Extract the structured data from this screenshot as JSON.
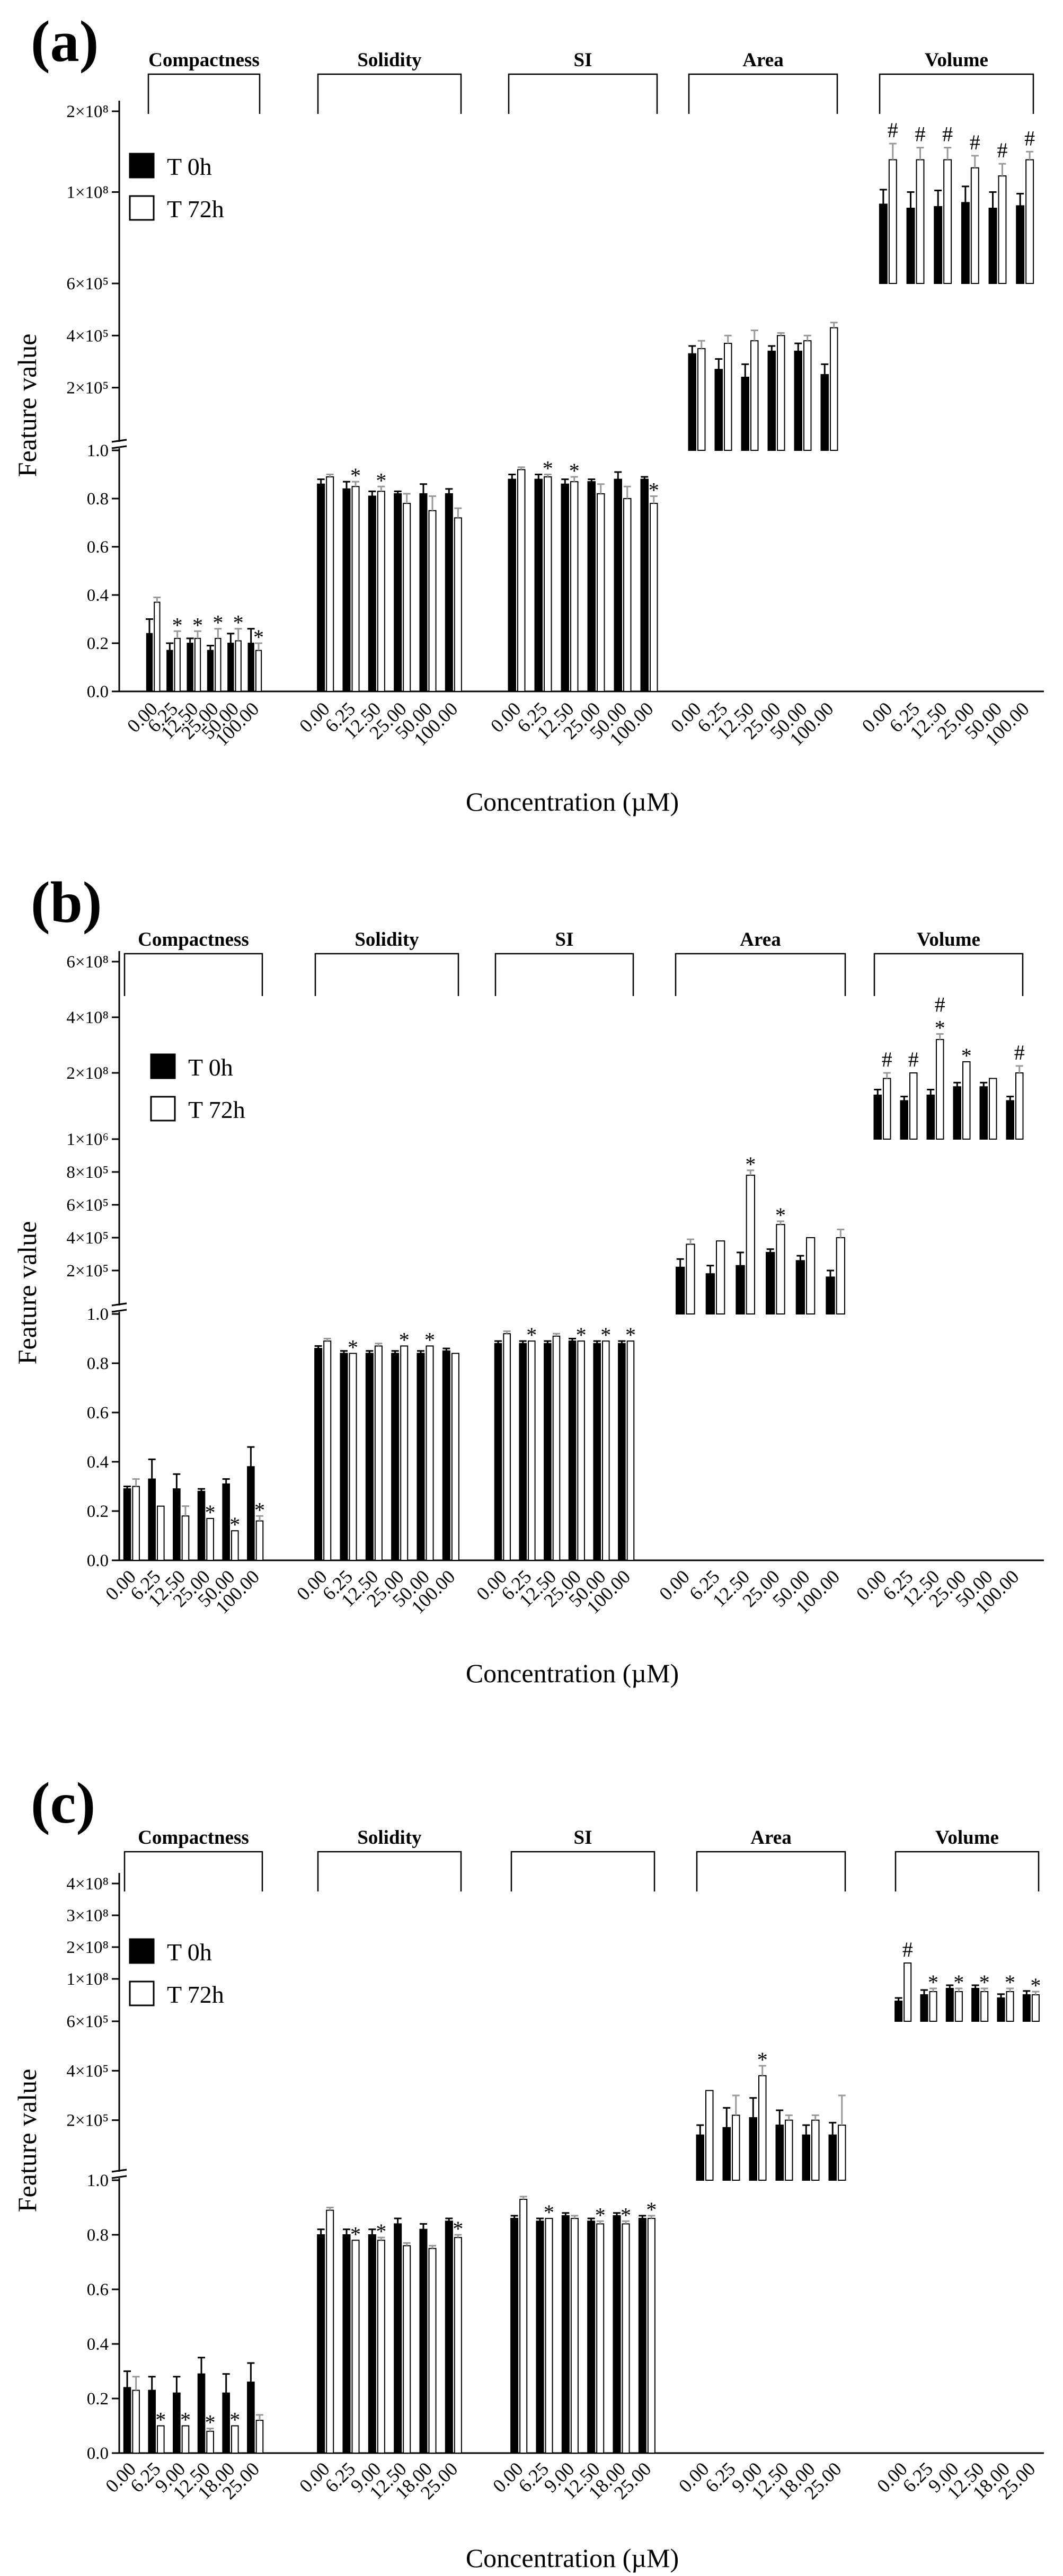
{
  "figure": {
    "colors": {
      "t0": "#000000",
      "t72": "#ffffff",
      "t72_error_bar": "#999999",
      "axis": "#000000"
    },
    "xticks_common": [
      "0.00",
      "6.25",
      "12.50",
      "25.00",
      "50.00",
      "100.00"
    ],
    "xticks_c": [
      "0.00",
      "6.25",
      "9.00",
      "12.50",
      "18.00",
      "25.00"
    ]
  },
  "chart_data": [
    {
      "type": "bar",
      "panel": "(a)",
      "title": "",
      "xlabel": "Concentration (µM)",
      "ylabel": "Feature value",
      "legend": [
        "T 0h",
        "T 72h"
      ],
      "legend_position": "upper-left",
      "groups": [
        "Compactness",
        "Solidity",
        "SI",
        "Area",
        "Volume"
      ],
      "categories": [
        "0.00",
        "6.25",
        "12.50",
        "25.00",
        "50.00",
        "100.00"
      ],
      "axis_segments": [
        {
          "name": "ratio",
          "range": [
            0,
            1.0
          ],
          "ticks": [
            "0.0",
            "0.2",
            "0.4",
            "0.6",
            "0.8",
            "1.0"
          ]
        },
        {
          "name": "area",
          "range": [
            0,
            600000.0
          ],
          "ticks": [
            "2×10⁵",
            "4×10⁵",
            "6×10⁵"
          ]
        },
        {
          "name": "volume",
          "range": [
            0,
            200000000.0
          ],
          "ticks": [
            "1×10⁸",
            "2×10⁸"
          ]
        }
      ],
      "series": [
        {
          "name": "T 0h",
          "groups": {
            "Compactness": [
              0.24,
              0.17,
              0.2,
              0.17,
              0.2,
              0.2
            ],
            "Solidity": [
              0.86,
              0.84,
              0.81,
              0.82,
              0.82,
              0.82
            ],
            "SI": [
              0.88,
              0.88,
              0.86,
              0.87,
              0.88,
              0.88
            ],
            "Area": [
              330000.0,
              270000.0,
              240000.0,
              340000.0,
              340000.0,
              250000.0
            ],
            "Volume": [
              85000000.0,
              80000000.0,
              82000000.0,
              87000000.0,
              80000000.0,
              83000000.0
            ]
          }
        },
        {
          "name": "T 72h",
          "groups": {
            "Compactness": [
              0.37,
              0.22,
              0.22,
              0.22,
              0.21,
              0.17
            ],
            "Solidity": [
              0.89,
              0.85,
              0.83,
              0.78,
              0.75,
              0.72
            ],
            "SI": [
              0.92,
              0.89,
              0.87,
              0.82,
              0.8,
              0.78
            ],
            "Area": [
              350000.0,
              370000.0,
              380000.0,
              400000.0,
              380000.0,
              430000.0
            ],
            "Volume": [
              140000000.0,
              140000000.0,
              140000000.0,
              130000000.0,
              120000000.0,
              140000000.0
            ]
          }
        }
      ],
      "errors": {
        "T 0h": {
          "Compactness": [
            0.06,
            0.03,
            0.02,
            0.02,
            0.04,
            0.06
          ],
          "Solidity": [
            0.02,
            0.03,
            0.02,
            0.01,
            0.04,
            0.02
          ],
          "SI": [
            0.02,
            0.02,
            0.02,
            0.01,
            0.03,
            0.01
          ],
          "Area": [
            30000.0,
            40000.0,
            50000.0,
            20000.0,
            30000.0,
            40000.0
          ],
          "Volume": [
            18000000.0,
            20000000.0,
            20000000.0,
            20000000.0,
            20000000.0,
            15000000.0
          ]
        },
        "T 72h": {
          "Compactness": [
            0.02,
            0.03,
            0.03,
            0.04,
            0.05,
            0.03
          ],
          "Solidity": [
            0.01,
            0.02,
            0.02,
            0.04,
            0.06,
            0.04
          ],
          "SI": [
            0.01,
            0.01,
            0.02,
            0.04,
            0.05,
            0.03
          ],
          "Area": [
            30000.0,
            30000.0,
            40000.0,
            10000.0,
            20000.0,
            20000.0
          ],
          "Volume": [
            20000000.0,
            15000000.0,
            15000000.0,
            15000000.0,
            15000000.0,
            10000000.0
          ]
        }
      },
      "annotations": {
        "Compactness": [
          "",
          "*",
          "*",
          "*",
          "*",
          "*"
        ],
        "Solidity": [
          "",
          "*",
          "*",
          "",
          "",
          ""
        ],
        "SI": [
          "",
          "*",
          "*",
          "",
          "",
          "*"
        ],
        "Area": [
          "",
          "",
          "",
          "",
          "",
          ""
        ],
        "Volume": [
          "#",
          "#",
          "#",
          "#",
          "#",
          "#"
        ]
      }
    },
    {
      "type": "bar",
      "panel": "(b)",
      "title": "",
      "xlabel": "Concentration (µM)",
      "ylabel": "Feature value",
      "legend": [
        "T 0h",
        "T 72h"
      ],
      "legend_position": "upper-left",
      "groups": [
        "Compactness",
        "Solidity",
        "SI",
        "Area",
        "Volume"
      ],
      "categories": [
        "0.00",
        "6.25",
        "12.50",
        "25.00",
        "50.00",
        "100.00"
      ],
      "axis_segments": [
        {
          "name": "ratio",
          "range": [
            0,
            1.0
          ],
          "ticks": [
            "0.0",
            "0.2",
            "0.4",
            "0.6",
            "0.8",
            "1.0"
          ]
        },
        {
          "name": "area",
          "range": [
            0,
            1000000.0
          ],
          "ticks": [
            "2×10⁵",
            "4×10⁵",
            "6×10⁵",
            "8×10⁵",
            "1×10⁶"
          ]
        },
        {
          "name": "volume",
          "range": [
            0,
            600000000.0
          ],
          "ticks": [
            "2×10⁸",
            "4×10⁸",
            "6×10⁸"
          ]
        }
      ],
      "series": [
        {
          "name": "T 0h",
          "groups": {
            "Compactness": [
              0.29,
              0.33,
              0.29,
              0.28,
              0.31,
              0.38
            ],
            "Solidity": [
              0.86,
              0.84,
              0.84,
              0.84,
              0.84,
              0.85
            ],
            "SI": [
              0.88,
              0.88,
              0.88,
              0.89,
              0.88,
              0.88
            ],
            "Area": [
              220000.0,
              180000.0,
              230000.0,
              310000.0,
              260000.0,
              160000.0
            ],
            "Volume": [
              120000000.0,
              100000000.0,
              120000000.0,
              150000000.0,
              150000000.0,
              100000000.0
            ]
          }
        },
        {
          "name": "T 72h",
          "groups": {
            "Compactness": [
              0.3,
              0.22,
              0.18,
              0.17,
              0.12,
              0.16
            ],
            "Solidity": [
              0.89,
              0.84,
              0.87,
              0.87,
              0.87,
              0.84
            ],
            "SI": [
              0.92,
              0.89,
              0.91,
              0.89,
              0.89,
              0.89
            ],
            "Area": [
              360000.0,
              380000.0,
              780000.0,
              480000.0,
              400000.0,
              400000.0
            ],
            "Volume": [
              180000000.0,
              200000000.0,
              320000000.0,
              240000000.0,
              180000000.0,
              200000000.0
            ]
          }
        }
      ],
      "errors": {
        "T 0h": {
          "Compactness": [
            0.01,
            0.08,
            0.06,
            0.01,
            0.02,
            0.08
          ],
          "Solidity": [
            0.01,
            0.01,
            0.01,
            0.01,
            0.01,
            0.01
          ],
          "SI": [
            0.01,
            0.01,
            0.01,
            0.01,
            0.01,
            0.01
          ],
          "Area": [
            50000.0,
            50000.0,
            80000.0,
            20000.0,
            30000.0,
            40000.0
          ],
          "Volume": [
            20000000.0,
            15000000.0,
            20000000.0,
            15000000.0,
            15000000.0,
            15000000.0
          ]
        },
        "T 72h": {
          "Compactness": [
            0.03,
            0.0,
            0.04,
            0.0,
            0.0,
            0.02
          ],
          "Solidity": [
            0.01,
            0.0,
            0.01,
            0.0,
            0.0,
            0.0
          ],
          "SI": [
            0.01,
            0.0,
            0.01,
            0.0,
            0.0,
            0.0
          ],
          "Area": [
            30000.0,
            0,
            30000.0,
            20000.0,
            0,
            50000.0
          ],
          "Volume": [
            20000000.0,
            0,
            20000000.0,
            0,
            0,
            25000000.0
          ]
        }
      },
      "annotations": {
        "Compactness": [
          "",
          "",
          "",
          "*",
          "*",
          "*"
        ],
        "Solidity": [
          "",
          "*",
          "",
          "*",
          "*",
          ""
        ],
        "SI": [
          "",
          "*",
          "",
          "*",
          "*",
          "*"
        ],
        "Area": [
          "",
          "",
          "*",
          "*",
          "",
          ""
        ],
        "Volume": [
          "#",
          "#",
          "#*",
          "*",
          "",
          "#"
        ]
      }
    },
    {
      "type": "bar",
      "panel": "(c)",
      "title": "",
      "xlabel": "Concentration (µM)",
      "ylabel": "Feature value",
      "legend": [
        "T 0h",
        "T 72h"
      ],
      "legend_position": "upper-left",
      "groups": [
        "Compactness",
        "Solidity",
        "SI",
        "Area",
        "Volume"
      ],
      "categories": [
        "0.00",
        "6.25",
        "9.00",
        "12.50",
        "18.00",
        "25.00"
      ],
      "axis_segments": [
        {
          "name": "ratio",
          "range": [
            0,
            1.0
          ],
          "ticks": [
            "0.0",
            "0.2",
            "0.4",
            "0.6",
            "0.8",
            "1.0"
          ]
        },
        {
          "name": "area",
          "range": [
            0,
            600000.0
          ],
          "ticks": [
            "2×10⁵",
            "4×10⁵",
            "6×10⁵"
          ]
        },
        {
          "name": "volume",
          "range": [
            0,
            400000000.0
          ],
          "ticks": [
            "1×10⁸",
            "2×10⁸",
            "3×10⁸",
            "4×10⁸"
          ]
        }
      ],
      "series": [
        {
          "name": "T 0h",
          "groups": {
            "Compactness": [
              0.24,
              0.23,
              0.22,
              0.29,
              0.22,
              0.26
            ],
            "Solidity": [
              0.8,
              0.8,
              0.8,
              0.84,
              0.82,
              0.85
            ],
            "SI": [
              0.86,
              0.85,
              0.87,
              0.85,
              0.87,
              0.86
            ],
            "Area": [
              140000.0,
              170000.0,
              210000.0,
              180000.0,
              140000.0,
              140000.0
            ],
            "Volume": [
              30000000.0,
              50000000.0,
              70000000.0,
              70000000.0,
              40000000.0,
              50000000.0
            ]
          }
        },
        {
          "name": "T 72h",
          "groups": {
            "Compactness": [
              0.23,
              0.1,
              0.1,
              0.08,
              0.1,
              0.12
            ],
            "Solidity": [
              0.89,
              0.78,
              0.78,
              0.76,
              0.75,
              0.79
            ],
            "SI": [
              0.93,
              0.86,
              0.86,
              0.84,
              0.84,
              0.86
            ],
            "Area": [
              320000.0,
              220000.0,
              380000.0,
              200000.0,
              200000.0,
              180000.0
            ],
            "Volume": [
              150000000.0,
              60000000.0,
              60000000.0,
              60000000.0,
              60000000.0,
              50000000.0
            ]
          }
        }
      ],
      "errors": {
        "T 0h": {
          "Compactness": [
            0.06,
            0.05,
            0.06,
            0.06,
            0.07,
            0.07
          ],
          "Solidity": [
            0.02,
            0.02,
            0.02,
            0.02,
            0.02,
            0.01
          ],
          "SI": [
            0.01,
            0.01,
            0.01,
            0.01,
            0.01,
            0.01
          ],
          "Area": [
            40000.0,
            80000.0,
            80000.0,
            60000.0,
            40000.0,
            50000.0
          ],
          "Volume": [
            10000000.0,
            15000000.0,
            10000000.0,
            10000000.0,
            12000000.0,
            12000000.0
          ]
        },
        "T 72h": {
          "Compactness": [
            0.05,
            0.0,
            0.0,
            0.01,
            0.0,
            0.02
          ],
          "Solidity": [
            0.01,
            0.0,
            0.01,
            0.01,
            0.01,
            0.01
          ],
          "SI": [
            0.01,
            0.0,
            0.01,
            0.01,
            0.01,
            0.01
          ],
          "Area": [
            0,
            80000.0,
            40000.0,
            20000.0,
            20000.0,
            120000.0
          ],
          "Volume": [
            0,
            10000000.0,
            10000000.0,
            10000000.0,
            10000000.0,
            10000000.0
          ]
        }
      },
      "annotations": {
        "Compactness": [
          "",
          "*",
          "*",
          "*",
          "*",
          ""
        ],
        "Solidity": [
          "",
          "*",
          "*",
          "",
          "",
          "*"
        ],
        "SI": [
          "",
          "*",
          "",
          "*",
          "*",
          "*"
        ],
        "Area": [
          "",
          "",
          "*",
          "",
          "",
          ""
        ],
        "Volume": [
          "#",
          "*",
          "*",
          "*",
          "*",
          "*"
        ]
      }
    }
  ]
}
